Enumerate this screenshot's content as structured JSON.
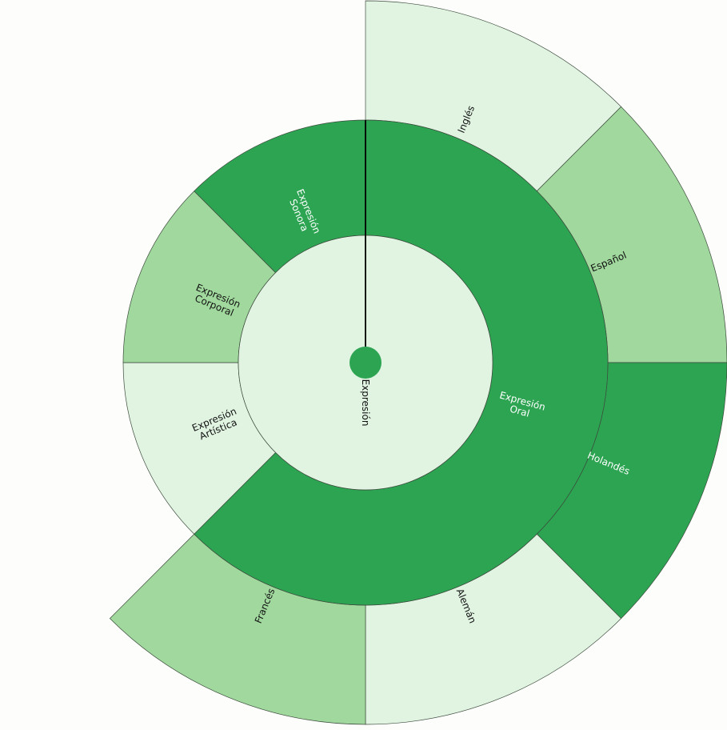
{
  "chart_data": {
    "type": "sunburst",
    "title": "",
    "colors": {
      "light": "#e1f4e2",
      "medium": "#a0d89d",
      "dark": "#2ca452",
      "text_dark": "#111111",
      "text_light": "#ffffff",
      "stroke": "#3c4a3c"
    },
    "root": {
      "label": "Expresión",
      "color": "dark",
      "text": "text_dark"
    },
    "ring1": [
      {
        "label": "Expresión Oral",
        "lines": [
          "Expresión",
          "Oral"
        ],
        "share": 0.625,
        "color": "dark",
        "text": "text_light"
      },
      {
        "label": "Expresión Artística",
        "lines": [
          "Expresión",
          "Artística"
        ],
        "share": 0.125,
        "color": "light",
        "text": "text_dark"
      },
      {
        "label": "Expresión Corporal",
        "lines": [
          "Expresión",
          "Corporal"
        ],
        "share": 0.125,
        "color": "medium",
        "text": "text_dark"
      },
      {
        "label": "Expresión Sonora",
        "lines": [
          "Expresión",
          "Sonora"
        ],
        "share": 0.125,
        "color": "dark",
        "text": "text_light"
      }
    ],
    "ring2": [
      {
        "label": "Inglés",
        "parent": "Expresión Oral",
        "share": 0.125,
        "color": "light",
        "text": "text_dark"
      },
      {
        "label": "Español",
        "parent": "Expresión Oral",
        "share": 0.125,
        "color": "medium",
        "text": "text_dark"
      },
      {
        "label": "Holandés",
        "parent": "Expresión Oral",
        "share": 0.125,
        "color": "dark",
        "text": "text_light"
      },
      {
        "label": "Alemán",
        "parent": "Expresión Oral",
        "share": 0.125,
        "color": "light",
        "text": "text_dark"
      },
      {
        "label": "Francés",
        "parent": "Expresión Oral",
        "share": 0.125,
        "color": "medium",
        "text": "text_dark"
      }
    ]
  }
}
